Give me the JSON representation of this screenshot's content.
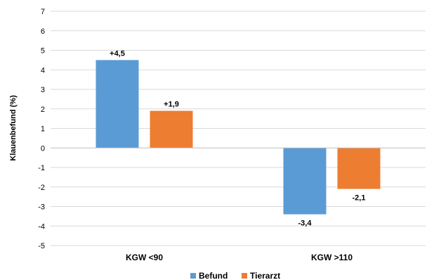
{
  "chart_data": {
    "type": "bar",
    "ylabel": "Klauenbefund (%)",
    "ylim": [
      -5,
      7
    ],
    "yticks": [
      7,
      6,
      5,
      4,
      3,
      2,
      1,
      0,
      -1,
      -2,
      -3,
      -4,
      -5
    ],
    "grid": true,
    "legend_position": "bottom",
    "categories": [
      "KGW <90",
      "KGW >110"
    ],
    "series": [
      {
        "name": "Befund",
        "color": "#5B9BD5",
        "values": [
          4.5,
          -3.4
        ],
        "labels": [
          "+4,5",
          "-3,4"
        ]
      },
      {
        "name": "Tierarzt",
        "color": "#ED7D31",
        "values": [
          1.9,
          -2.1
        ],
        "labels": [
          "+1,9",
          "-2,1"
        ]
      }
    ]
  }
}
